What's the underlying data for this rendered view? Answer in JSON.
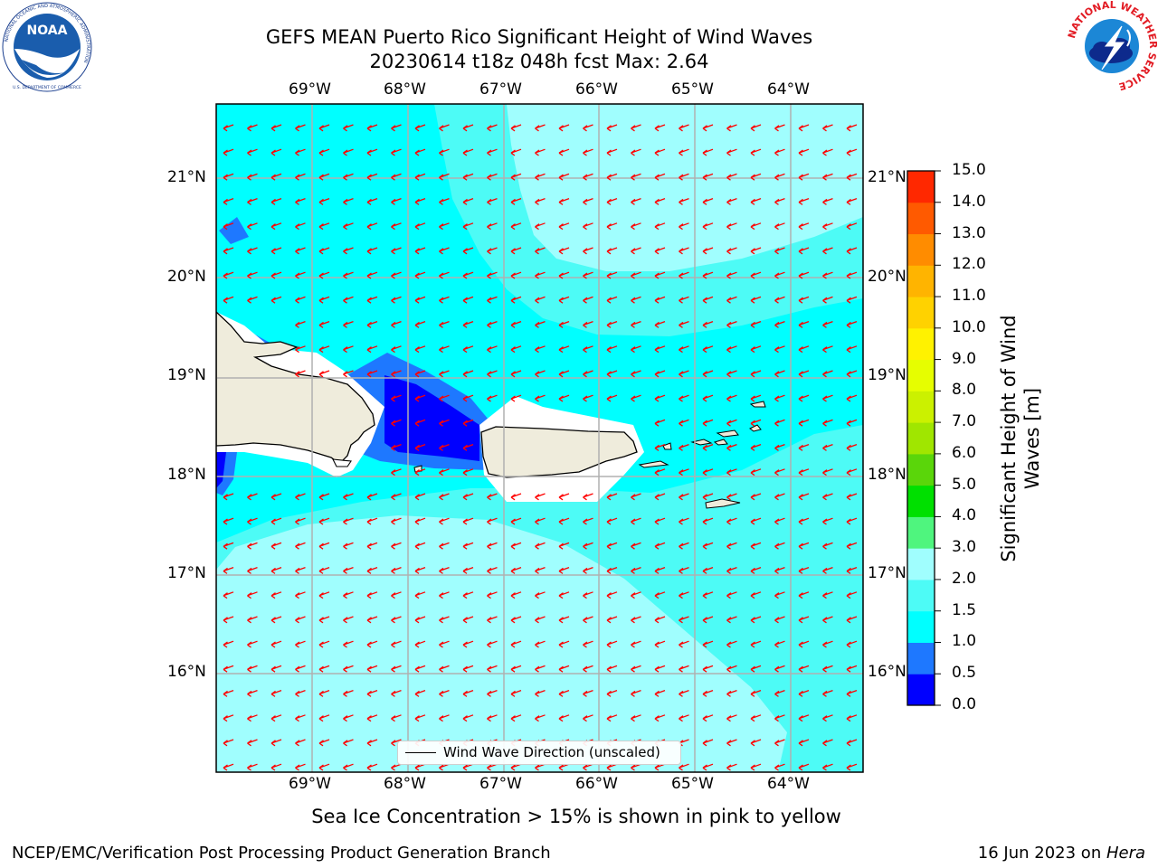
{
  "header": {
    "title_line1": "GEFS MEAN Puerto Rico Significant Height of Wind Waves",
    "title_line2": "20230614 t18z 048h fcst   Max: 2.64"
  },
  "caption": "Sea Ice Concentration > 15% is shown in pink to yellow",
  "footer": {
    "left": "NCEP/EMC/Verification Post Processing Product Generation Branch",
    "date": "16 Jun 2023 on ",
    "host": "Hera"
  },
  "logos": {
    "noaa": "NOAA",
    "noaa_ring": "NATIONAL OCEANIC AND ATMOSPHERIC ADMINISTRATION",
    "noaa_bottom": "U.S. DEPARTMENT OF COMMERCE",
    "nws_ring": "NATIONAL WEATHER SERVICE"
  },
  "map": {
    "lon_labels": [
      "69°W",
      "68°W",
      "67°W",
      "66°W",
      "65°W",
      "64°W"
    ],
    "lat_labels": [
      "21°N",
      "20°N",
      "19°N",
      "18°N",
      "17°N",
      "16°N"
    ],
    "legend_label": "Wind Wave Direction (unscaled)",
    "arrow_color": "#ff0000",
    "wind_wave_direction": "toward west-southwest"
  },
  "colorbar": {
    "title_line1": "Significant Height of Wind",
    "title_line2": "Waves [m]",
    "ticks": [
      "0.0",
      "0.5",
      "1.0",
      "1.5",
      "2.0",
      "3.0",
      "4.0",
      "5.0",
      "6.0",
      "7.0",
      "8.0",
      "9.0",
      "10.0",
      "11.0",
      "12.0",
      "13.0",
      "14.0",
      "15.0"
    ],
    "colors": [
      "#0000ff",
      "#1e78ff",
      "#00ffff",
      "#4dfbf6",
      "#a0fefe",
      "#4ff57e",
      "#00e000",
      "#5ad60a",
      "#a0e600",
      "#cbf100",
      "#e6fe00",
      "#fff200",
      "#ffd200",
      "#ffb400",
      "#ff8c00",
      "#ff5a00",
      "#ff2800"
    ]
  }
}
